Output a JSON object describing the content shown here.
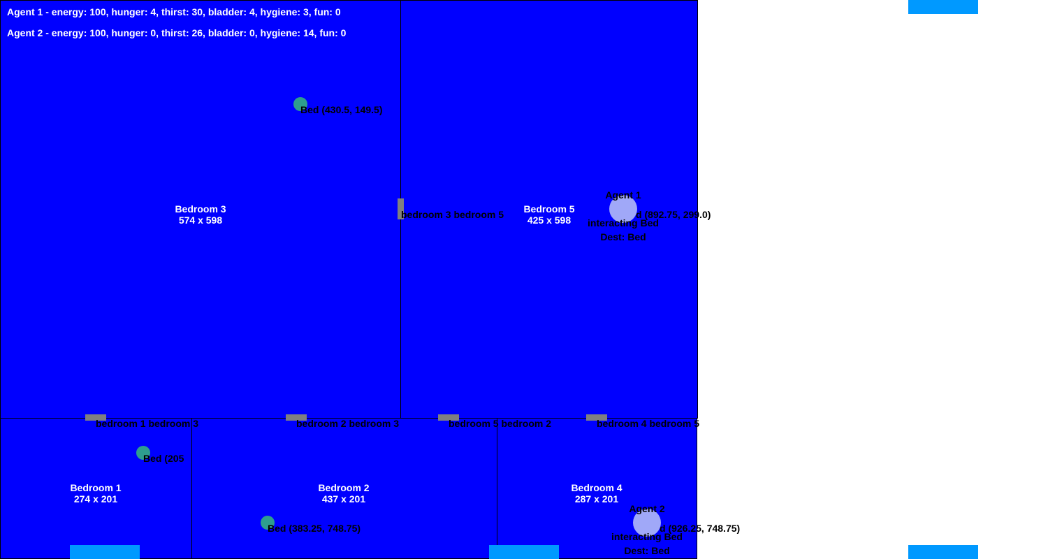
{
  "colors": {
    "room_fill": "#0000ff",
    "door": "#808080",
    "bed": "#2e9e8e",
    "agent": "#a0a8f8",
    "tab": "#0099ff"
  },
  "stats": {
    "agent1": "Agent 1 - energy: 100, hunger: 4, thirst: 30, bladder: 4, hygiene: 3, fun: 0",
    "agent2": "Agent 2 - energy: 100, hunger: 0, thirst: 26, bladder: 0, hygiene: 14, fun: 0"
  },
  "rooms": [
    {
      "name": "Bedroom 3",
      "size": "574 x 598"
    },
    {
      "name": "Bedroom 5",
      "size": "425 x 598"
    },
    {
      "name": "Bedroom 1",
      "size": "274 x 201"
    },
    {
      "name": "Bedroom 2",
      "size": "437 x 201"
    },
    {
      "name": "Bedroom 4",
      "size": "287 x 201"
    }
  ],
  "doors": [
    {
      "label": "bedroom 3 bedroom 5"
    },
    {
      "label": "bedroom 1 bedroom 3"
    },
    {
      "label": "bedroom 2 bedroom 3"
    },
    {
      "label": "bedroom 5 bedroom 2"
    },
    {
      "label": "bedroom 4 bedroom 5"
    }
  ],
  "beds": [
    {
      "label": "Bed (430.5, 149.5)"
    },
    {
      "label": "Bed (205"
    },
    {
      "label": "Bed (383.25, 748.75)"
    },
    {
      "label": "d (892.75, 299.0)"
    },
    {
      "label": "d (926.25, 748.75)"
    }
  ],
  "agents": [
    {
      "name": "Agent 1",
      "status": "interacting Bed",
      "dest": "Dest: Bed"
    },
    {
      "name": "Agent 2",
      "status": "interacting Bed",
      "dest": "Dest: Bed"
    }
  ]
}
